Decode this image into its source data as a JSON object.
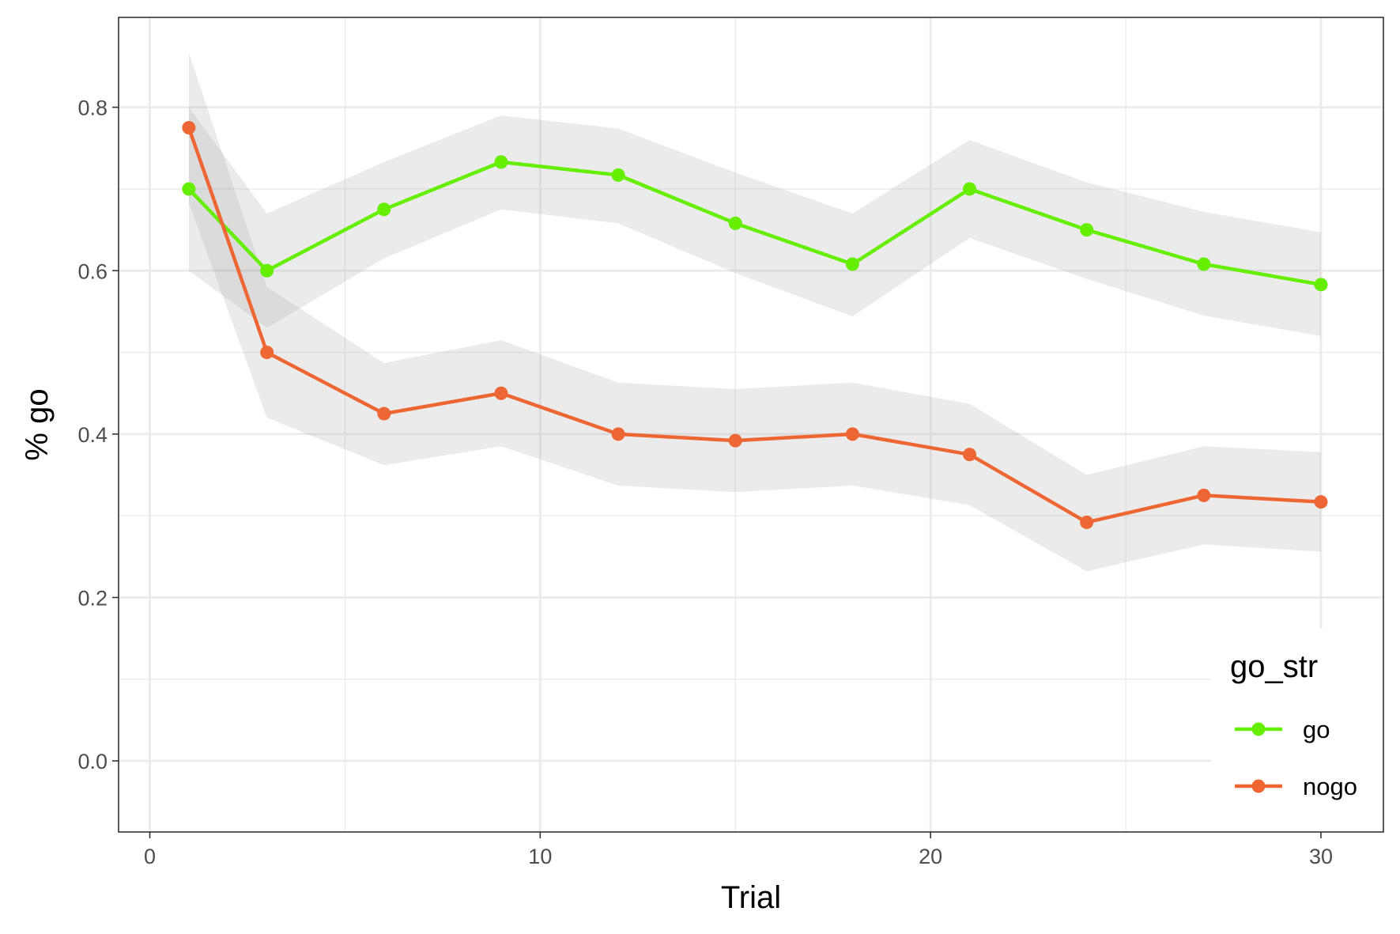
{
  "chart_data": {
    "type": "line",
    "title": "",
    "xlabel": "Trial",
    "ylabel": "% go",
    "xlim": [
      -0.8,
      31.6
    ],
    "ylim": [
      -0.087,
      0.91
    ],
    "x_ticks": [
      0,
      10,
      20,
      30
    ],
    "x_tick_labels": [
      "0",
      "10",
      "20",
      "30"
    ],
    "y_ticks": [
      0.0,
      0.2,
      0.4,
      0.6,
      0.8
    ],
    "y_tick_labels": [
      "0.0",
      "0.2",
      "0.4",
      "0.6",
      "0.8"
    ],
    "grid": true,
    "legend": {
      "title": "go_str",
      "position": "bottom-right"
    },
    "x": [
      1,
      3,
      6,
      9,
      12,
      15,
      18,
      21,
      24,
      27,
      30
    ],
    "series": [
      {
        "name": "go",
        "color": "#66ee00",
        "values": [
          0.7,
          0.6,
          0.675,
          0.733,
          0.717,
          0.658,
          0.608,
          0.7,
          0.65,
          0.608,
          0.583
        ],
        "ci_lower": [
          0.6,
          0.53,
          0.615,
          0.675,
          0.658,
          0.597,
          0.544,
          0.64,
          0.59,
          0.545,
          0.52
        ],
        "ci_upper": [
          0.8,
          0.67,
          0.733,
          0.79,
          0.774,
          0.72,
          0.67,
          0.76,
          0.708,
          0.672,
          0.647
        ]
      },
      {
        "name": "nogo",
        "color": "#ee6633",
        "values": [
          0.775,
          0.5,
          0.425,
          0.45,
          0.4,
          0.392,
          0.4,
          0.375,
          0.292,
          0.325,
          0.317
        ],
        "ci_lower": [
          0.683,
          0.42,
          0.362,
          0.385,
          0.337,
          0.329,
          0.337,
          0.313,
          0.232,
          0.265,
          0.256
        ],
        "ci_upper": [
          0.867,
          0.58,
          0.487,
          0.515,
          0.463,
          0.455,
          0.463,
          0.437,
          0.35,
          0.385,
          0.378
        ]
      }
    ]
  }
}
